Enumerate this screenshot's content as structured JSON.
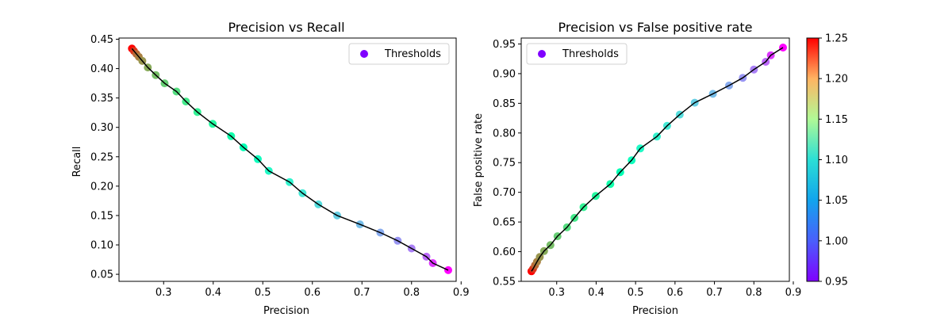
{
  "chart_data": [
    {
      "type": "scatter",
      "title": "Precision vs Recall",
      "xlabel": "Precision",
      "ylabel": "Recall",
      "xlim": [
        0.21,
        0.89
      ],
      "ylim": [
        0.038,
        0.452
      ],
      "xticks": [
        "0.3",
        "0.4",
        "0.5",
        "0.6",
        "0.7",
        "0.8",
        "0.9"
      ],
      "yticks": [
        "0.05",
        "0.10",
        "0.15",
        "0.20",
        "0.25",
        "0.30",
        "0.35",
        "0.40",
        "0.45"
      ],
      "legend": {
        "label": "Thresholds",
        "position": "top-right"
      },
      "line_color": "#000000",
      "x": [
        0.236,
        0.24,
        0.245,
        0.25,
        0.257,
        0.268,
        0.284,
        0.302,
        0.326,
        0.345,
        0.368,
        0.399,
        0.436,
        0.461,
        0.49,
        0.512,
        0.554,
        0.58,
        0.612,
        0.65,
        0.696,
        0.737,
        0.772,
        0.8,
        0.83,
        0.843,
        0.874
      ],
      "y": [
        0.434,
        0.43,
        0.425,
        0.42,
        0.413,
        0.402,
        0.389,
        0.375,
        0.361,
        0.344,
        0.326,
        0.306,
        0.285,
        0.266,
        0.246,
        0.226,
        0.207,
        0.188,
        0.169,
        0.15,
        0.135,
        0.121,
        0.107,
        0.094,
        0.08,
        0.069,
        0.057
      ],
      "thresholds": [
        1.25,
        1.23,
        1.21,
        1.2,
        1.19,
        1.18,
        1.17,
        1.16,
        1.15,
        1.14,
        1.13,
        1.12,
        1.11,
        1.1,
        1.09,
        1.08,
        1.07,
        1.06,
        1.05,
        1.04,
        1.03,
        1.02,
        1.01,
        1.0,
        0.99,
        0.97,
        0.95
      ]
    },
    {
      "type": "scatter",
      "title": "Precision vs False positive rate",
      "xlabel": "Precision",
      "ylabel": "False positive rate",
      "xlim": [
        0.21,
        0.89
      ],
      "ylim": [
        0.55,
        0.96
      ],
      "xticks": [
        "0.3",
        "0.4",
        "0.5",
        "0.6",
        "0.7",
        "0.8",
        "0.9"
      ],
      "yticks": [
        "0.55",
        "0.60",
        "0.65",
        "0.70",
        "0.75",
        "0.80",
        "0.85",
        "0.90",
        "0.95"
      ],
      "legend": {
        "label": "Thresholds",
        "position": "top-left"
      },
      "line_color": "#000000",
      "x": [
        0.236,
        0.24,
        0.245,
        0.25,
        0.257,
        0.268,
        0.284,
        0.302,
        0.326,
        0.345,
        0.368,
        0.399,
        0.436,
        0.461,
        0.49,
        0.512,
        0.554,
        0.58,
        0.612,
        0.65,
        0.696,
        0.737,
        0.772,
        0.8,
        0.83,
        0.843,
        0.874
      ],
      "y": [
        0.567,
        0.571,
        0.577,
        0.583,
        0.591,
        0.601,
        0.611,
        0.626,
        0.641,
        0.657,
        0.675,
        0.694,
        0.714,
        0.734,
        0.754,
        0.774,
        0.794,
        0.812,
        0.831,
        0.851,
        0.866,
        0.88,
        0.893,
        0.907,
        0.92,
        0.931,
        0.944
      ],
      "thresholds": [
        1.25,
        1.23,
        1.21,
        1.2,
        1.19,
        1.18,
        1.17,
        1.16,
        1.15,
        1.14,
        1.13,
        1.12,
        1.11,
        1.1,
        1.09,
        1.08,
        1.07,
        1.06,
        1.05,
        1.04,
        1.03,
        1.02,
        1.01,
        1.0,
        0.99,
        0.97,
        0.95
      ]
    }
  ],
  "colorbar": {
    "colormap": "rainbow",
    "min": 0.95,
    "max": 1.25,
    "ticks": [
      "0.95",
      "1.00",
      "1.05",
      "1.10",
      "1.15",
      "1.20",
      "1.25"
    ]
  }
}
